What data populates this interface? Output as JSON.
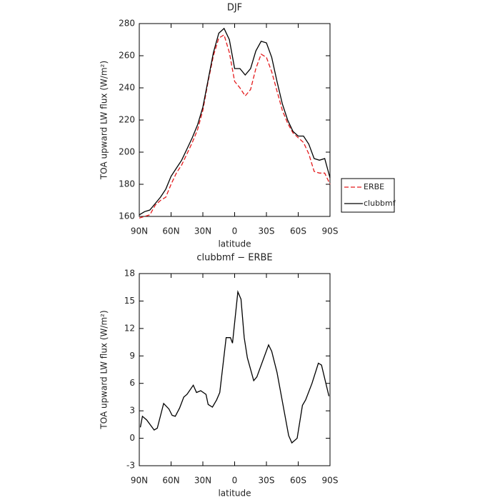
{
  "chart_data": [
    {
      "type": "line",
      "title": "DJF",
      "xlabel": "latitude",
      "ylabel": "TOA upward LW flux (W/m²)",
      "x": [
        90,
        85,
        80,
        75,
        70,
        65,
        60,
        55,
        50,
        45,
        40,
        35,
        30,
        25,
        20,
        15,
        10,
        5,
        0,
        -5,
        -10,
        -15,
        -20,
        -25,
        -30,
        -35,
        -40,
        -45,
        -50,
        -55,
        -60,
        -65,
        -70,
        -75,
        -80,
        -85,
        -90
      ],
      "series": [
        {
          "name": "ERBE",
          "color": "#e41a1c",
          "style": "dashed",
          "values": [
            159,
            160,
            161,
            167,
            170,
            172,
            180,
            187,
            192,
            199,
            206,
            214,
            226,
            244,
            260,
            271,
            273,
            262,
            244,
            240,
            235,
            239,
            252,
            261,
            259,
            250,
            238,
            226,
            218,
            212,
            209,
            206,
            199,
            188,
            187,
            187,
            180
          ]
        },
        {
          "name": "clubbmf",
          "color": "#000000",
          "style": "solid",
          "values": [
            161,
            163,
            164,
            168,
            172,
            177,
            185,
            190,
            195,
            202,
            209,
            217,
            228,
            245,
            262,
            274,
            277,
            270,
            252,
            252,
            248,
            252,
            263,
            269,
            268,
            259,
            244,
            230,
            220,
            213,
            210,
            210,
            205,
            196,
            195,
            196,
            184
          ]
        }
      ],
      "xlim": [
        90,
        -90
      ],
      "xticks": [
        {
          "value": 90,
          "label": "90N"
        },
        {
          "value": 60,
          "label": "60N"
        },
        {
          "value": 30,
          "label": "30N"
        },
        0,
        {
          "value": -30,
          "label": "30S"
        },
        {
          "value": -60,
          "label": "60S"
        },
        {
          "value": -90,
          "label": "90S"
        }
      ],
      "ylim": [
        160,
        280
      ],
      "yticks": [
        160,
        180,
        200,
        220,
        240,
        260,
        280
      ],
      "legend": "right"
    },
    {
      "type": "line",
      "title": "clubbmf − ERBE",
      "xlabel": "latitude",
      "ylabel": "TOA upward LW flux (W/m²)",
      "x": [
        89,
        87,
        83,
        76,
        73,
        67,
        62,
        59,
        56,
        52,
        48,
        45,
        39,
        36,
        32,
        27,
        25,
        21,
        17,
        14,
        8,
        4,
        2,
        -3,
        -6,
        -9,
        -12,
        -18,
        -21,
        -32,
        -35,
        -40,
        -51,
        -54,
        -59,
        -64,
        -67,
        -73,
        -79,
        -82,
        -89
      ],
      "color": "#000000",
      "values": [
        1.2,
        2.4,
        2.0,
        0.9,
        1.1,
        3.8,
        3.2,
        2.5,
        2.4,
        3.3,
        4.5,
        4.8,
        5.8,
        5.0,
        5.2,
        4.8,
        3.7,
        3.4,
        4.2,
        5.0,
        11.0,
        11.0,
        10.4,
        16.0,
        15.2,
        11.0,
        8.8,
        6.3,
        6.7,
        10.2,
        9.5,
        7.2,
        0.3,
        -0.5,
        0.0,
        3.6,
        4.2,
        6.0,
        8.2,
        8.0,
        4.6
      ],
      "xlim": [
        90,
        -90
      ],
      "xticks": [
        {
          "value": 90,
          "label": "90N"
        },
        {
          "value": 60,
          "label": "60N"
        },
        {
          "value": 30,
          "label": "30N"
        },
        0,
        {
          "value": -30,
          "label": "30S"
        },
        {
          "value": -60,
          "label": "60S"
        },
        {
          "value": -90,
          "label": "90S"
        }
      ],
      "ylim": [
        -3,
        18
      ],
      "yticks": [
        -3,
        0,
        3,
        6,
        9,
        12,
        15,
        18
      ]
    }
  ]
}
